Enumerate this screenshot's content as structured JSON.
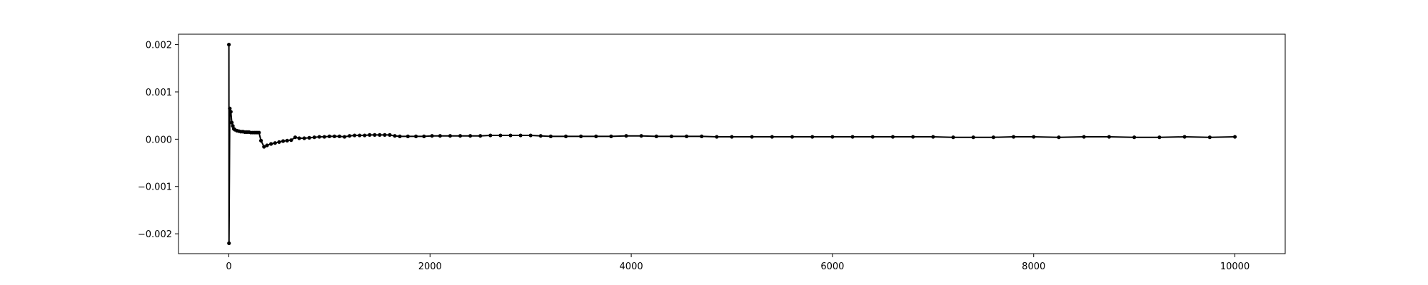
{
  "chart_data": {
    "type": "line",
    "title": "",
    "xlabel": "",
    "ylabel": "",
    "xlim": [
      -500,
      10500
    ],
    "ylim": [
      -0.00242,
      0.00222
    ],
    "grid": false,
    "legend": "none",
    "line_color": "#000000",
    "marker": "dot",
    "x_ticks": [
      {
        "value": 0,
        "label": "0"
      },
      {
        "value": 2000,
        "label": "2000"
      },
      {
        "value": 4000,
        "label": "4000"
      },
      {
        "value": 6000,
        "label": "6000"
      },
      {
        "value": 8000,
        "label": "8000"
      },
      {
        "value": 10000,
        "label": "10000"
      }
    ],
    "y_ticks": [
      {
        "value": -0.002,
        "label": "−0.002"
      },
      {
        "value": -0.001,
        "label": "−0.001"
      },
      {
        "value": 0.0,
        "label": "0.000"
      },
      {
        "value": 0.001,
        "label": "0.001"
      },
      {
        "value": 0.002,
        "label": "0.002"
      }
    ],
    "series": [
      {
        "x": [
          1,
          2,
          10,
          20,
          30,
          40,
          50,
          60,
          80,
          100,
          120,
          140,
          160,
          180,
          200,
          220,
          240,
          260,
          280,
          300,
          320,
          350,
          380,
          420,
          460,
          500,
          540,
          580,
          620,
          660,
          700,
          750,
          800,
          850,
          900,
          950,
          1000,
          1050,
          1100,
          1150,
          1200,
          1250,
          1300,
          1350,
          1400,
          1450,
          1500,
          1550,
          1600,
          1650,
          1700,
          1780,
          1860,
          1940,
          2020,
          2100,
          2200,
          2300,
          2400,
          2500,
          2600,
          2700,
          2800,
          2900,
          3000,
          3100,
          3200,
          3350,
          3500,
          3650,
          3800,
          3950,
          4100,
          4250,
          4400,
          4550,
          4700,
          4850,
          5000,
          5200,
          5400,
          5600,
          5800,
          6000,
          6200,
          6400,
          6600,
          6800,
          7000,
          7200,
          7400,
          7600,
          7800,
          8000,
          8250,
          8500,
          8750,
          9000,
          9250,
          9500,
          9750,
          10000
        ],
        "y": [
          0.002,
          -0.0022,
          0.00065,
          0.00058,
          0.00035,
          0.00028,
          0.00022,
          0.0002,
          0.00018,
          0.00017,
          0.00016,
          0.00016,
          0.00015,
          0.00015,
          0.00015,
          0.00014,
          0.00014,
          0.00014,
          0.00014,
          0.00014,
          -3e-05,
          -0.00016,
          -0.00013,
          -0.0001,
          -8e-05,
          -6e-05,
          -4e-05,
          -3e-05,
          -2e-05,
          4e-05,
          2e-05,
          2e-05,
          3e-05,
          4e-05,
          5e-05,
          5e-05,
          6e-05,
          6e-05,
          6e-05,
          5e-05,
          7e-05,
          8e-05,
          8e-05,
          8e-05,
          9e-05,
          9e-05,
          9e-05,
          9e-05,
          9e-05,
          7e-05,
          6e-05,
          6e-05,
          6e-05,
          6e-05,
          7e-05,
          7e-05,
          7e-05,
          7e-05,
          7e-05,
          7e-05,
          8e-05,
          8e-05,
          8e-05,
          8e-05,
          8e-05,
          7e-05,
          6e-05,
          6e-05,
          6e-05,
          6e-05,
          6e-05,
          7e-05,
          7e-05,
          6e-05,
          6e-05,
          6e-05,
          6e-05,
          5e-05,
          5e-05,
          5e-05,
          5e-05,
          5e-05,
          5e-05,
          5e-05,
          5e-05,
          5e-05,
          5e-05,
          5e-05,
          5e-05,
          4e-05,
          4e-05,
          4e-05,
          5e-05,
          5e-05,
          4e-05,
          5e-05,
          5e-05,
          4e-05,
          4e-05,
          5e-05,
          4e-05,
          5e-05
        ]
      }
    ]
  }
}
